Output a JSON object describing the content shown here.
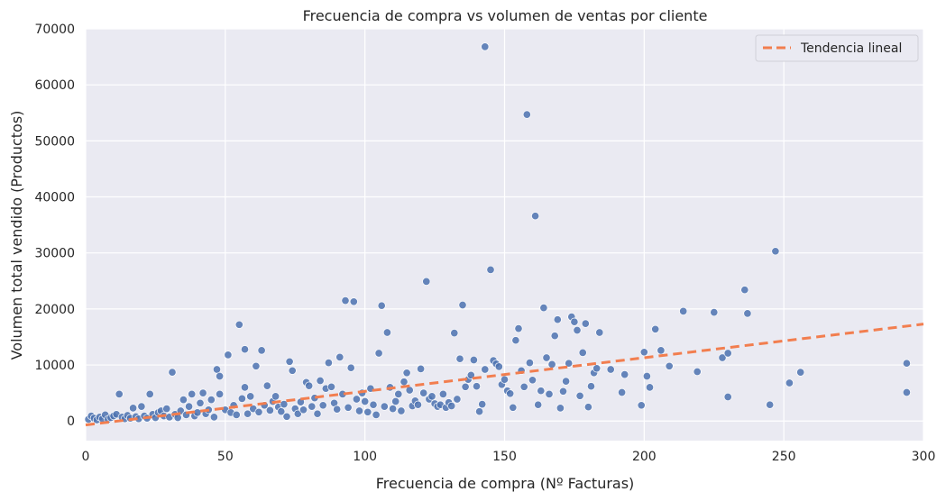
{
  "chart_data": {
    "type": "scatter",
    "title": "Frecuencia de compra vs volumen de ventas por cliente",
    "xlabel": "Frecuencia de compra (Nº Facturas)",
    "ylabel": "Volumen total vendido (Productos)",
    "xlim": [
      0,
      300
    ],
    "ylim": [
      -3500,
      70000
    ],
    "xticks": [
      0,
      50,
      100,
      150,
      200,
      250,
      300
    ],
    "yticks": [
      0,
      10000,
      20000,
      30000,
      40000,
      50000,
      60000,
      70000
    ],
    "grid": true,
    "legend_position": "top-right",
    "colors": {
      "points": "#4c72b0",
      "trend": "#f27e4f",
      "background": "#eaeaf2"
    },
    "series": [
      {
        "name": "",
        "points": [
          [
            1,
            300
          ],
          [
            2,
            900
          ],
          [
            3,
            500
          ],
          [
            4,
            200
          ],
          [
            5,
            700
          ],
          [
            6,
            400
          ],
          [
            7,
            1100
          ],
          [
            8,
            300
          ],
          [
            9,
            600
          ],
          [
            10,
            900
          ],
          [
            11,
            1200
          ],
          [
            12,
            4800
          ],
          [
            13,
            700
          ],
          [
            14,
            400
          ],
          [
            15,
            1000
          ],
          [
            16,
            500
          ],
          [
            17,
            2300
          ],
          [
            18,
            800
          ],
          [
            19,
            400
          ],
          [
            20,
            2600
          ],
          [
            21,
            900
          ],
          [
            22,
            500
          ],
          [
            23,
            4800
          ],
          [
            24,
            1200
          ],
          [
            25,
            600
          ],
          [
            26,
            1500
          ],
          [
            27,
            1800
          ],
          [
            28,
            900
          ],
          [
            29,
            2200
          ],
          [
            30,
            700
          ],
          [
            31,
            8700
          ],
          [
            32,
            1200
          ],
          [
            33,
            600
          ],
          [
            34,
            1800
          ],
          [
            35,
            3800
          ],
          [
            36,
            1100
          ],
          [
            37,
            2600
          ],
          [
            38,
            4800
          ],
          [
            39,
            900
          ],
          [
            40,
            1500
          ],
          [
            41,
            3200
          ],
          [
            42,
            5000
          ],
          [
            43,
            1300
          ],
          [
            44,
            2000
          ],
          [
            45,
            3800
          ],
          [
            46,
            700
          ],
          [
            47,
            9200
          ],
          [
            48,
            4800
          ],
          [
            48,
            8000
          ],
          [
            50,
            2000
          ],
          [
            51,
            11800
          ],
          [
            52,
            1500
          ],
          [
            53,
            2800
          ],
          [
            54,
            1100
          ],
          [
            55,
            17200
          ],
          [
            56,
            4000
          ],
          [
            57,
            6000
          ],
          [
            57,
            12800
          ],
          [
            58,
            1300
          ],
          [
            59,
            4400
          ],
          [
            60,
            2200
          ],
          [
            61,
            9800
          ],
          [
            62,
            1600
          ],
          [
            63,
            12600
          ],
          [
            64,
            2800
          ],
          [
            65,
            6300
          ],
          [
            66,
            1900
          ],
          [
            67,
            3500
          ],
          [
            68,
            4400
          ],
          [
            69,
            2500
          ],
          [
            70,
            1700
          ],
          [
            71,
            3000
          ],
          [
            72,
            800
          ],
          [
            73,
            10600
          ],
          [
            74,
            9000
          ],
          [
            75,
            2200
          ],
          [
            76,
            1300
          ],
          [
            77,
            3400
          ],
          [
            78,
            2000
          ],
          [
            79,
            6900
          ],
          [
            80,
            6300
          ],
          [
            81,
            2600
          ],
          [
            82,
            4100
          ],
          [
            83,
            1300
          ],
          [
            84,
            7200
          ],
          [
            85,
            2800
          ],
          [
            86,
            5800
          ],
          [
            87,
            10400
          ],
          [
            88,
            6100
          ],
          [
            89,
            3200
          ],
          [
            90,
            2100
          ],
          [
            91,
            11400
          ],
          [
            92,
            4800
          ],
          [
            93,
            21500
          ],
          [
            94,
            2400
          ],
          [
            95,
            9500
          ],
          [
            96,
            21300
          ],
          [
            97,
            3900
          ],
          [
            98,
            1800
          ],
          [
            99,
            5000
          ],
          [
            100,
            3500
          ],
          [
            101,
            1600
          ],
          [
            102,
            5800
          ],
          [
            103,
            2900
          ],
          [
            104,
            1100
          ],
          [
            105,
            12100
          ],
          [
            106,
            20600
          ],
          [
            107,
            2600
          ],
          [
            108,
            15800
          ],
          [
            109,
            6000
          ],
          [
            110,
            2200
          ],
          [
            111,
            3500
          ],
          [
            112,
            4800
          ],
          [
            113,
            1800
          ],
          [
            114,
            7000
          ],
          [
            115,
            8600
          ],
          [
            116,
            5500
          ],
          [
            117,
            2700
          ],
          [
            118,
            3600
          ],
          [
            119,
            2900
          ],
          [
            120,
            9300
          ],
          [
            121,
            5000
          ],
          [
            122,
            24900
          ],
          [
            123,
            3900
          ],
          [
            124,
            4400
          ],
          [
            125,
            3100
          ],
          [
            126,
            2600
          ],
          [
            127,
            2900
          ],
          [
            128,
            4800
          ],
          [
            129,
            2400
          ],
          [
            130,
            3300
          ],
          [
            131,
            2700
          ],
          [
            132,
            15700
          ],
          [
            133,
            3900
          ],
          [
            134,
            11100
          ],
          [
            135,
            20700
          ],
          [
            136,
            6100
          ],
          [
            137,
            7400
          ],
          [
            138,
            8200
          ],
          [
            139,
            10900
          ],
          [
            140,
            6200
          ],
          [
            141,
            1700
          ],
          [
            142,
            3000
          ],
          [
            143,
            66800
          ],
          [
            143,
            9200
          ],
          [
            145,
            27000
          ],
          [
            146,
            10800
          ],
          [
            147,
            10200
          ],
          [
            148,
            9700
          ],
          [
            149,
            6500
          ],
          [
            150,
            7400
          ],
          [
            151,
            5400
          ],
          [
            152,
            4900
          ],
          [
            153,
            2400
          ],
          [
            154,
            14400
          ],
          [
            155,
            16500
          ],
          [
            156,
            9000
          ],
          [
            157,
            6100
          ],
          [
            158,
            54700
          ],
          [
            159,
            10400
          ],
          [
            160,
            7300
          ],
          [
            161,
            36600
          ],
          [
            162,
            2900
          ],
          [
            163,
            5400
          ],
          [
            164,
            20200
          ],
          [
            165,
            11300
          ],
          [
            166,
            4800
          ],
          [
            167,
            10100
          ],
          [
            168,
            15200
          ],
          [
            169,
            18100
          ],
          [
            170,
            2300
          ],
          [
            171,
            5300
          ],
          [
            172,
            7100
          ],
          [
            173,
            10300
          ],
          [
            174,
            18600
          ],
          [
            175,
            17700
          ],
          [
            176,
            16200
          ],
          [
            177,
            4500
          ],
          [
            178,
            12200
          ],
          [
            179,
            17400
          ],
          [
            180,
            2500
          ],
          [
            181,
            6200
          ],
          [
            182,
            8600
          ],
          [
            183,
            9400
          ],
          [
            184,
            15800
          ],
          [
            188,
            9200
          ],
          [
            192,
            5100
          ],
          [
            193,
            8300
          ],
          [
            199,
            2800
          ],
          [
            200,
            12300
          ],
          [
            201,
            8000
          ],
          [
            202,
            6000
          ],
          [
            204,
            16400
          ],
          [
            206,
            12600
          ],
          [
            209,
            9800
          ],
          [
            214,
            19600
          ],
          [
            219,
            8800
          ],
          [
            225,
            19400
          ],
          [
            228,
            11300
          ],
          [
            230,
            12100
          ],
          [
            230,
            4300
          ],
          [
            236,
            23400
          ],
          [
            237,
            19200
          ],
          [
            245,
            2900
          ],
          [
            247,
            30300
          ],
          [
            252,
            6800
          ],
          [
            256,
            8700
          ],
          [
            294,
            10300
          ],
          [
            294,
            5100
          ]
        ]
      }
    ],
    "trend": {
      "name": "Tendencia lineal",
      "x": [
        0,
        300
      ],
      "y": [
        -700,
        17300
      ]
    }
  }
}
